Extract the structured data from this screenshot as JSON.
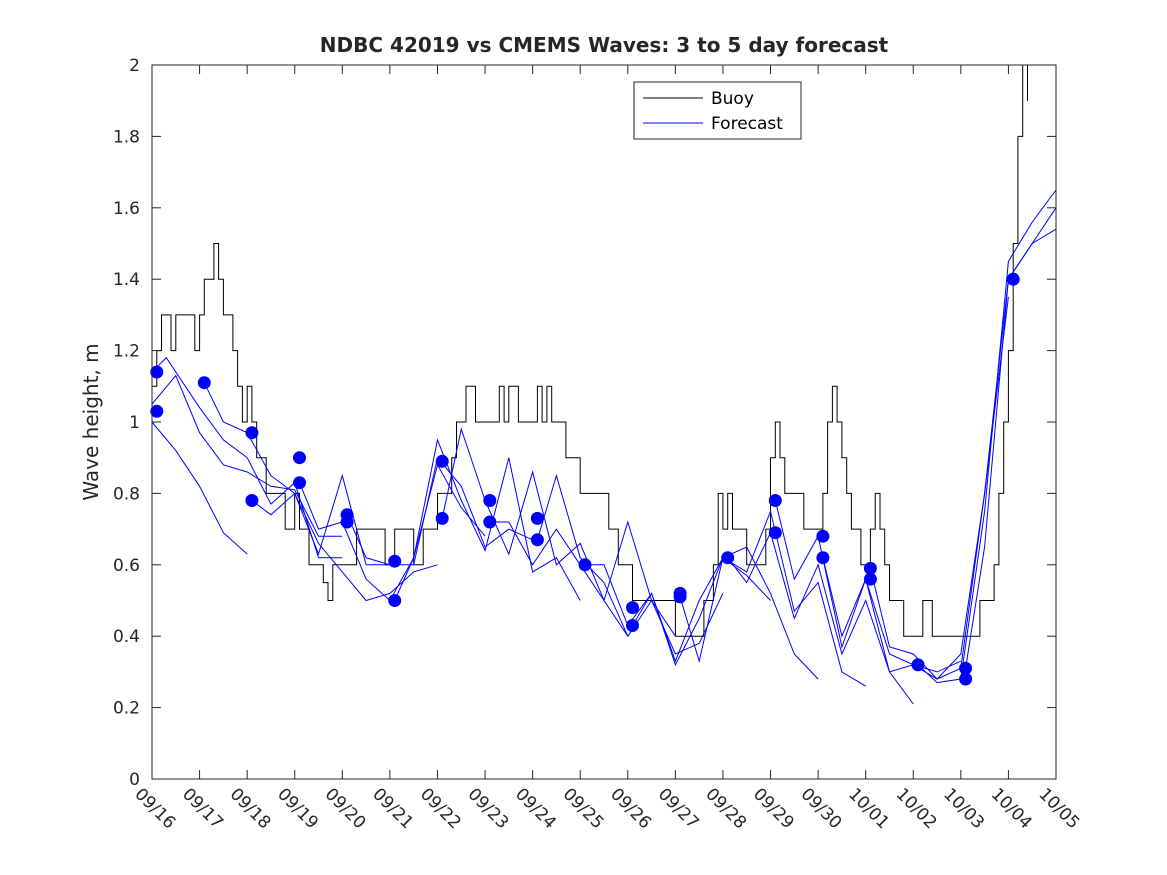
{
  "chart_data": {
    "type": "line",
    "title": "NDBC 42019 vs CMEMS Waves: 3 to 5 day forecast",
    "xlabel": "",
    "ylabel": "Wave height, m",
    "ylim": [
      0,
      2
    ],
    "xlim": [
      0,
      19
    ],
    "yticks": [
      0,
      0.2,
      0.4,
      0.6,
      0.8,
      1,
      1.2,
      1.4,
      1.6,
      1.8,
      2
    ],
    "ytick_labels": [
      "0",
      "0.2",
      "0.4",
      "0.6",
      "0.8",
      "1",
      "1.2",
      "1.4",
      "1.6",
      "1.8",
      "2"
    ],
    "x_tick_labels": [
      "09/16",
      "09/17",
      "09/18",
      "09/19",
      "09/20",
      "09/21",
      "09/22",
      "09/23",
      "09/24",
      "09/25",
      "09/26",
      "09/27",
      "09/28",
      "09/29",
      "09/30",
      "10/01",
      "10/02",
      "10/03",
      "10/04",
      "10/05"
    ],
    "x_units": "days since 09/16",
    "legend": {
      "position": "top-right",
      "entries": [
        "Buoy",
        "Forecast"
      ]
    },
    "colors": {
      "buoy": "#000000",
      "forecast": "#0000ff",
      "axes": "#262626"
    },
    "series": [
      {
        "name": "Buoy",
        "x": [
          0,
          0.1,
          0.2,
          0.3,
          0.4,
          0.5,
          0.6,
          0.7,
          0.8,
          0.9,
          1.0,
          1.1,
          1.2,
          1.3,
          1.4,
          1.5,
          1.6,
          1.7,
          1.8,
          1.9,
          2.0,
          2.1,
          2.2,
          2.3,
          2.4,
          2.5,
          2.6,
          2.7,
          2.8,
          2.9,
          3.0,
          3.1,
          3.2,
          3.3,
          3.4,
          3.5,
          3.6,
          3.7,
          3.8,
          3.9,
          4.0,
          4.1,
          4.2,
          4.3,
          4.5,
          4.7,
          4.9,
          5.1,
          5.3,
          5.5,
          5.7,
          5.9,
          6.0,
          6.1,
          6.2,
          6.3,
          6.4,
          6.5,
          6.6,
          6.7,
          6.8,
          6.9,
          7.0,
          7.1,
          7.2,
          7.3,
          7.4,
          7.5,
          7.6,
          7.7,
          7.8,
          7.9,
          8.0,
          8.1,
          8.2,
          8.3,
          8.4,
          8.5,
          8.6,
          8.7,
          8.8,
          8.9,
          9.0,
          9.1,
          9.2,
          9.3,
          9.4,
          9.5,
          9.6,
          9.7,
          9.8,
          9.9,
          10.0,
          10.1,
          10.2,
          10.3,
          10.4,
          10.5,
          10.6,
          10.7,
          10.8,
          10.9,
          11.0,
          11.1,
          11.2,
          11.3,
          11.4,
          11.5,
          11.6,
          11.7,
          11.8,
          11.9,
          12.0,
          12.1,
          12.2,
          12.3,
          12.4,
          12.5,
          12.6,
          12.7,
          12.8,
          12.9,
          13.0,
          13.1,
          13.2,
          13.3,
          13.4,
          13.5,
          13.6,
          13.7,
          13.8,
          13.9,
          14.0,
          14.1,
          14.2,
          14.3,
          14.4,
          14.5,
          14.6,
          14.7,
          14.8,
          14.9,
          15.0,
          15.1,
          15.2,
          15.3,
          15.4,
          15.5,
          15.6,
          15.7,
          15.8,
          15.9,
          16.0,
          16.2,
          16.4,
          16.6,
          16.8,
          17.0,
          17.1,
          17.2,
          17.3,
          17.4,
          17.5,
          17.6,
          17.7,
          17.8,
          17.9,
          18.0,
          18.1,
          18.2,
          18.3,
          18.4
        ],
        "y": [
          1.1,
          1.2,
          1.3,
          1.3,
          1.2,
          1.3,
          1.3,
          1.3,
          1.3,
          1.2,
          1.3,
          1.4,
          1.4,
          1.5,
          1.4,
          1.3,
          1.3,
          1.2,
          1.1,
          1.0,
          1.1,
          1.0,
          0.9,
          0.9,
          0.8,
          0.8,
          0.8,
          0.8,
          0.7,
          0.7,
          0.8,
          0.7,
          0.7,
          0.6,
          0.6,
          0.6,
          0.55,
          0.5,
          0.6,
          0.6,
          0.6,
          0.6,
          0.6,
          0.7,
          0.7,
          0.7,
          0.6,
          0.7,
          0.7,
          0.6,
          0.7,
          0.7,
          0.8,
          0.8,
          0.8,
          0.9,
          1.0,
          1.0,
          1.1,
          1.1,
          1.0,
          1.0,
          1.0,
          1.0,
          1.0,
          1.1,
          1.0,
          1.1,
          1.1,
          1.0,
          1.0,
          1.0,
          1.0,
          1.1,
          1.0,
          1.1,
          1.0,
          1.0,
          1.0,
          0.9,
          0.9,
          0.9,
          0.8,
          0.8,
          0.8,
          0.8,
          0.8,
          0.8,
          0.7,
          0.7,
          0.6,
          0.6,
          0.6,
          0.5,
          0.5,
          0.5,
          0.5,
          0.5,
          0.5,
          0.5,
          0.5,
          0.5,
          0.4,
          0.4,
          0.4,
          0.4,
          0.4,
          0.4,
          0.5,
          0.5,
          0.6,
          0.8,
          0.7,
          0.8,
          0.7,
          0.7,
          0.7,
          0.6,
          0.6,
          0.6,
          0.6,
          0.7,
          0.9,
          1.0,
          0.9,
          0.8,
          0.8,
          0.8,
          0.8,
          0.7,
          0.7,
          0.7,
          0.7,
          0.8,
          1.0,
          1.1,
          1.0,
          0.9,
          0.8,
          0.7,
          0.7,
          0.6,
          0.6,
          0.7,
          0.8,
          0.7,
          0.6,
          0.5,
          0.5,
          0.5,
          0.4,
          0.4,
          0.4,
          0.5,
          0.4,
          0.4,
          0.4,
          0.4,
          0.4,
          0.4,
          0.4,
          0.5,
          0.5,
          0.5,
          0.6,
          0.8,
          1.0,
          1.2,
          1.5,
          1.8,
          2.0,
          1.9
        ],
        "color": "#000000"
      }
    ],
    "forecast_lines": [
      {
        "x": [
          0.0,
          0.5,
          1.0,
          1.5,
          2.0,
          2.5,
          3.0,
          3.5,
          4.0
        ],
        "y": [
          1.05,
          1.13,
          0.97,
          0.88,
          0.86,
          0.82,
          0.81,
          0.68,
          0.68
        ]
      },
      {
        "x": [
          0.0,
          0.5,
          1.0,
          1.5,
          2.0
        ],
        "y": [
          1.0,
          0.92,
          0.82,
          0.69,
          0.63
        ]
      },
      {
        "x": [
          0.0,
          0.3,
          1.0,
          1.5,
          2.0,
          2.5,
          3.0,
          3.5,
          4.0
        ],
        "y": [
          1.14,
          1.18,
          1.04,
          0.95,
          0.9,
          0.77,
          0.83,
          0.62,
          0.62
        ]
      },
      {
        "x": [
          1.1,
          1.5,
          2.0,
          2.5,
          3.0,
          3.5,
          4.0,
          4.5,
          5.0
        ],
        "y": [
          1.11,
          1.0,
          0.97,
          0.85,
          0.8,
          0.63,
          0.85,
          0.6,
          0.6
        ]
      },
      {
        "x": [
          2.1,
          2.5,
          3.0,
          3.5,
          4.0,
          4.5,
          5.0,
          5.5,
          6.0
        ],
        "y": [
          0.78,
          0.74,
          0.8,
          0.66,
          0.58,
          0.5,
          0.52,
          0.58,
          0.6
        ]
      },
      {
        "x": [
          3.1,
          3.5,
          4.0,
          4.5,
          5.0,
          5.5,
          6.0,
          6.5,
          7.0
        ],
        "y": [
          0.83,
          0.7,
          0.72,
          0.56,
          0.5,
          0.62,
          0.88,
          0.76,
          0.68
        ]
      },
      {
        "x": [
          4.1,
          4.5,
          5.0,
          5.5,
          6.0,
          6.5,
          7.0,
          7.5,
          8.0
        ],
        "y": [
          0.74,
          0.62,
          0.6,
          0.6,
          0.9,
          0.82,
          0.65,
          0.7,
          0.67
        ]
      },
      {
        "x": [
          5.1,
          5.5,
          6.0,
          6.5,
          7.0,
          7.5,
          8.0,
          8.5,
          9.0
        ],
        "y": [
          0.5,
          0.62,
          0.95,
          0.78,
          0.64,
          0.9,
          0.58,
          0.62,
          0.5
        ]
      },
      {
        "x": [
          6.1,
          6.5,
          7.0,
          7.5,
          8.0,
          8.5,
          9.0,
          9.5,
          10.0
        ],
        "y": [
          0.73,
          0.98,
          0.78,
          0.63,
          0.86,
          0.6,
          0.66,
          0.5,
          0.4
        ]
      },
      {
        "x": [
          7.1,
          7.5,
          8.0,
          8.5,
          9.0,
          9.5,
          10.0,
          10.5,
          11.0
        ],
        "y": [
          0.72,
          0.72,
          0.6,
          0.7,
          0.6,
          0.5,
          0.72,
          0.5,
          0.4
        ]
      },
      {
        "x": [
          8.1,
          8.5,
          9.0,
          9.5,
          10.0,
          10.5,
          11.0,
          11.5,
          12.0
        ],
        "y": [
          0.67,
          0.85,
          0.62,
          0.55,
          0.4,
          0.5,
          0.35,
          0.38,
          0.52
        ]
      },
      {
        "x": [
          9.1,
          9.5,
          10.0,
          10.5,
          11.0,
          11.5,
          12.0,
          12.5,
          13.0
        ],
        "y": [
          0.6,
          0.6,
          0.43,
          0.52,
          0.32,
          0.45,
          0.62,
          0.57,
          0.5
        ]
      },
      {
        "x": [
          10.1,
          10.5,
          11.0,
          11.5,
          12.0,
          12.5,
          13.0,
          13.5,
          14.0
        ],
        "y": [
          0.43,
          0.52,
          0.33,
          0.5,
          0.62,
          0.65,
          0.52,
          0.35,
          0.28
        ]
      },
      {
        "x": [
          11.1,
          11.5,
          12.0,
          12.5,
          13.0,
          13.5,
          14.0,
          14.5,
          15.0
        ],
        "y": [
          0.51,
          0.33,
          0.62,
          0.58,
          0.75,
          0.47,
          0.55,
          0.3,
          0.26
        ]
      },
      {
        "x": [
          12.1,
          12.5,
          13.0,
          13.5,
          14.0,
          14.5,
          15.0,
          15.5,
          16.0
        ],
        "y": [
          0.62,
          0.55,
          0.69,
          0.45,
          0.6,
          0.35,
          0.5,
          0.3,
          0.21
        ]
      },
      {
        "x": [
          13.1,
          13.5,
          14.0,
          14.5,
          15.0,
          15.5,
          16.0,
          16.5,
          17.0
        ],
        "y": [
          0.78,
          0.56,
          0.68,
          0.37,
          0.56,
          0.3,
          0.32,
          0.3,
          0.33
        ]
      },
      {
        "x": [
          14.1,
          14.5,
          15.0,
          15.5,
          16.0,
          16.5,
          17.0,
          17.5,
          18.0
        ],
        "y": [
          0.62,
          0.4,
          0.56,
          0.35,
          0.32,
          0.28,
          0.31,
          0.8,
          1.35
        ]
      },
      {
        "x": [
          15.1,
          15.5,
          16.0,
          16.5,
          17.0,
          17.5,
          18.0,
          18.5,
          19.0
        ],
        "y": [
          0.59,
          0.37,
          0.35,
          0.28,
          0.35,
          0.8,
          1.4,
          1.5,
          1.54
        ]
      },
      {
        "x": [
          16.1,
          16.5,
          17.0,
          17.5,
          18.0,
          18.5,
          19.0
        ],
        "y": [
          0.32,
          0.27,
          0.28,
          0.75,
          1.45,
          1.56,
          1.65
        ]
      },
      {
        "x": [
          17.1,
          17.5,
          18.0,
          18.5,
          19.0
        ],
        "y": [
          0.31,
          0.65,
          1.4,
          1.5,
          1.6
        ]
      }
    ],
    "forecast_markers": {
      "x": [
        0.1,
        0.1,
        1.1,
        2.1,
        2.1,
        3.1,
        3.1,
        4.1,
        4.1,
        5.1,
        5.1,
        6.1,
        6.1,
        7.1,
        7.1,
        8.1,
        8.1,
        9.1,
        10.1,
        10.1,
        11.1,
        11.1,
        12.1,
        13.1,
        13.1,
        14.1,
        14.1,
        15.1,
        15.1,
        16.1,
        17.1,
        17.1,
        18.1
      ],
      "y": [
        1.14,
        1.03,
        1.11,
        0.97,
        0.78,
        0.9,
        0.83,
        0.74,
        0.72,
        0.61,
        0.5,
        0.89,
        0.73,
        0.78,
        0.72,
        0.73,
        0.67,
        0.6,
        0.48,
        0.43,
        0.52,
        0.51,
        0.62,
        0.78,
        0.69,
        0.68,
        0.62,
        0.59,
        0.56,
        0.32,
        0.31,
        0.28,
        1.4
      ]
    }
  }
}
